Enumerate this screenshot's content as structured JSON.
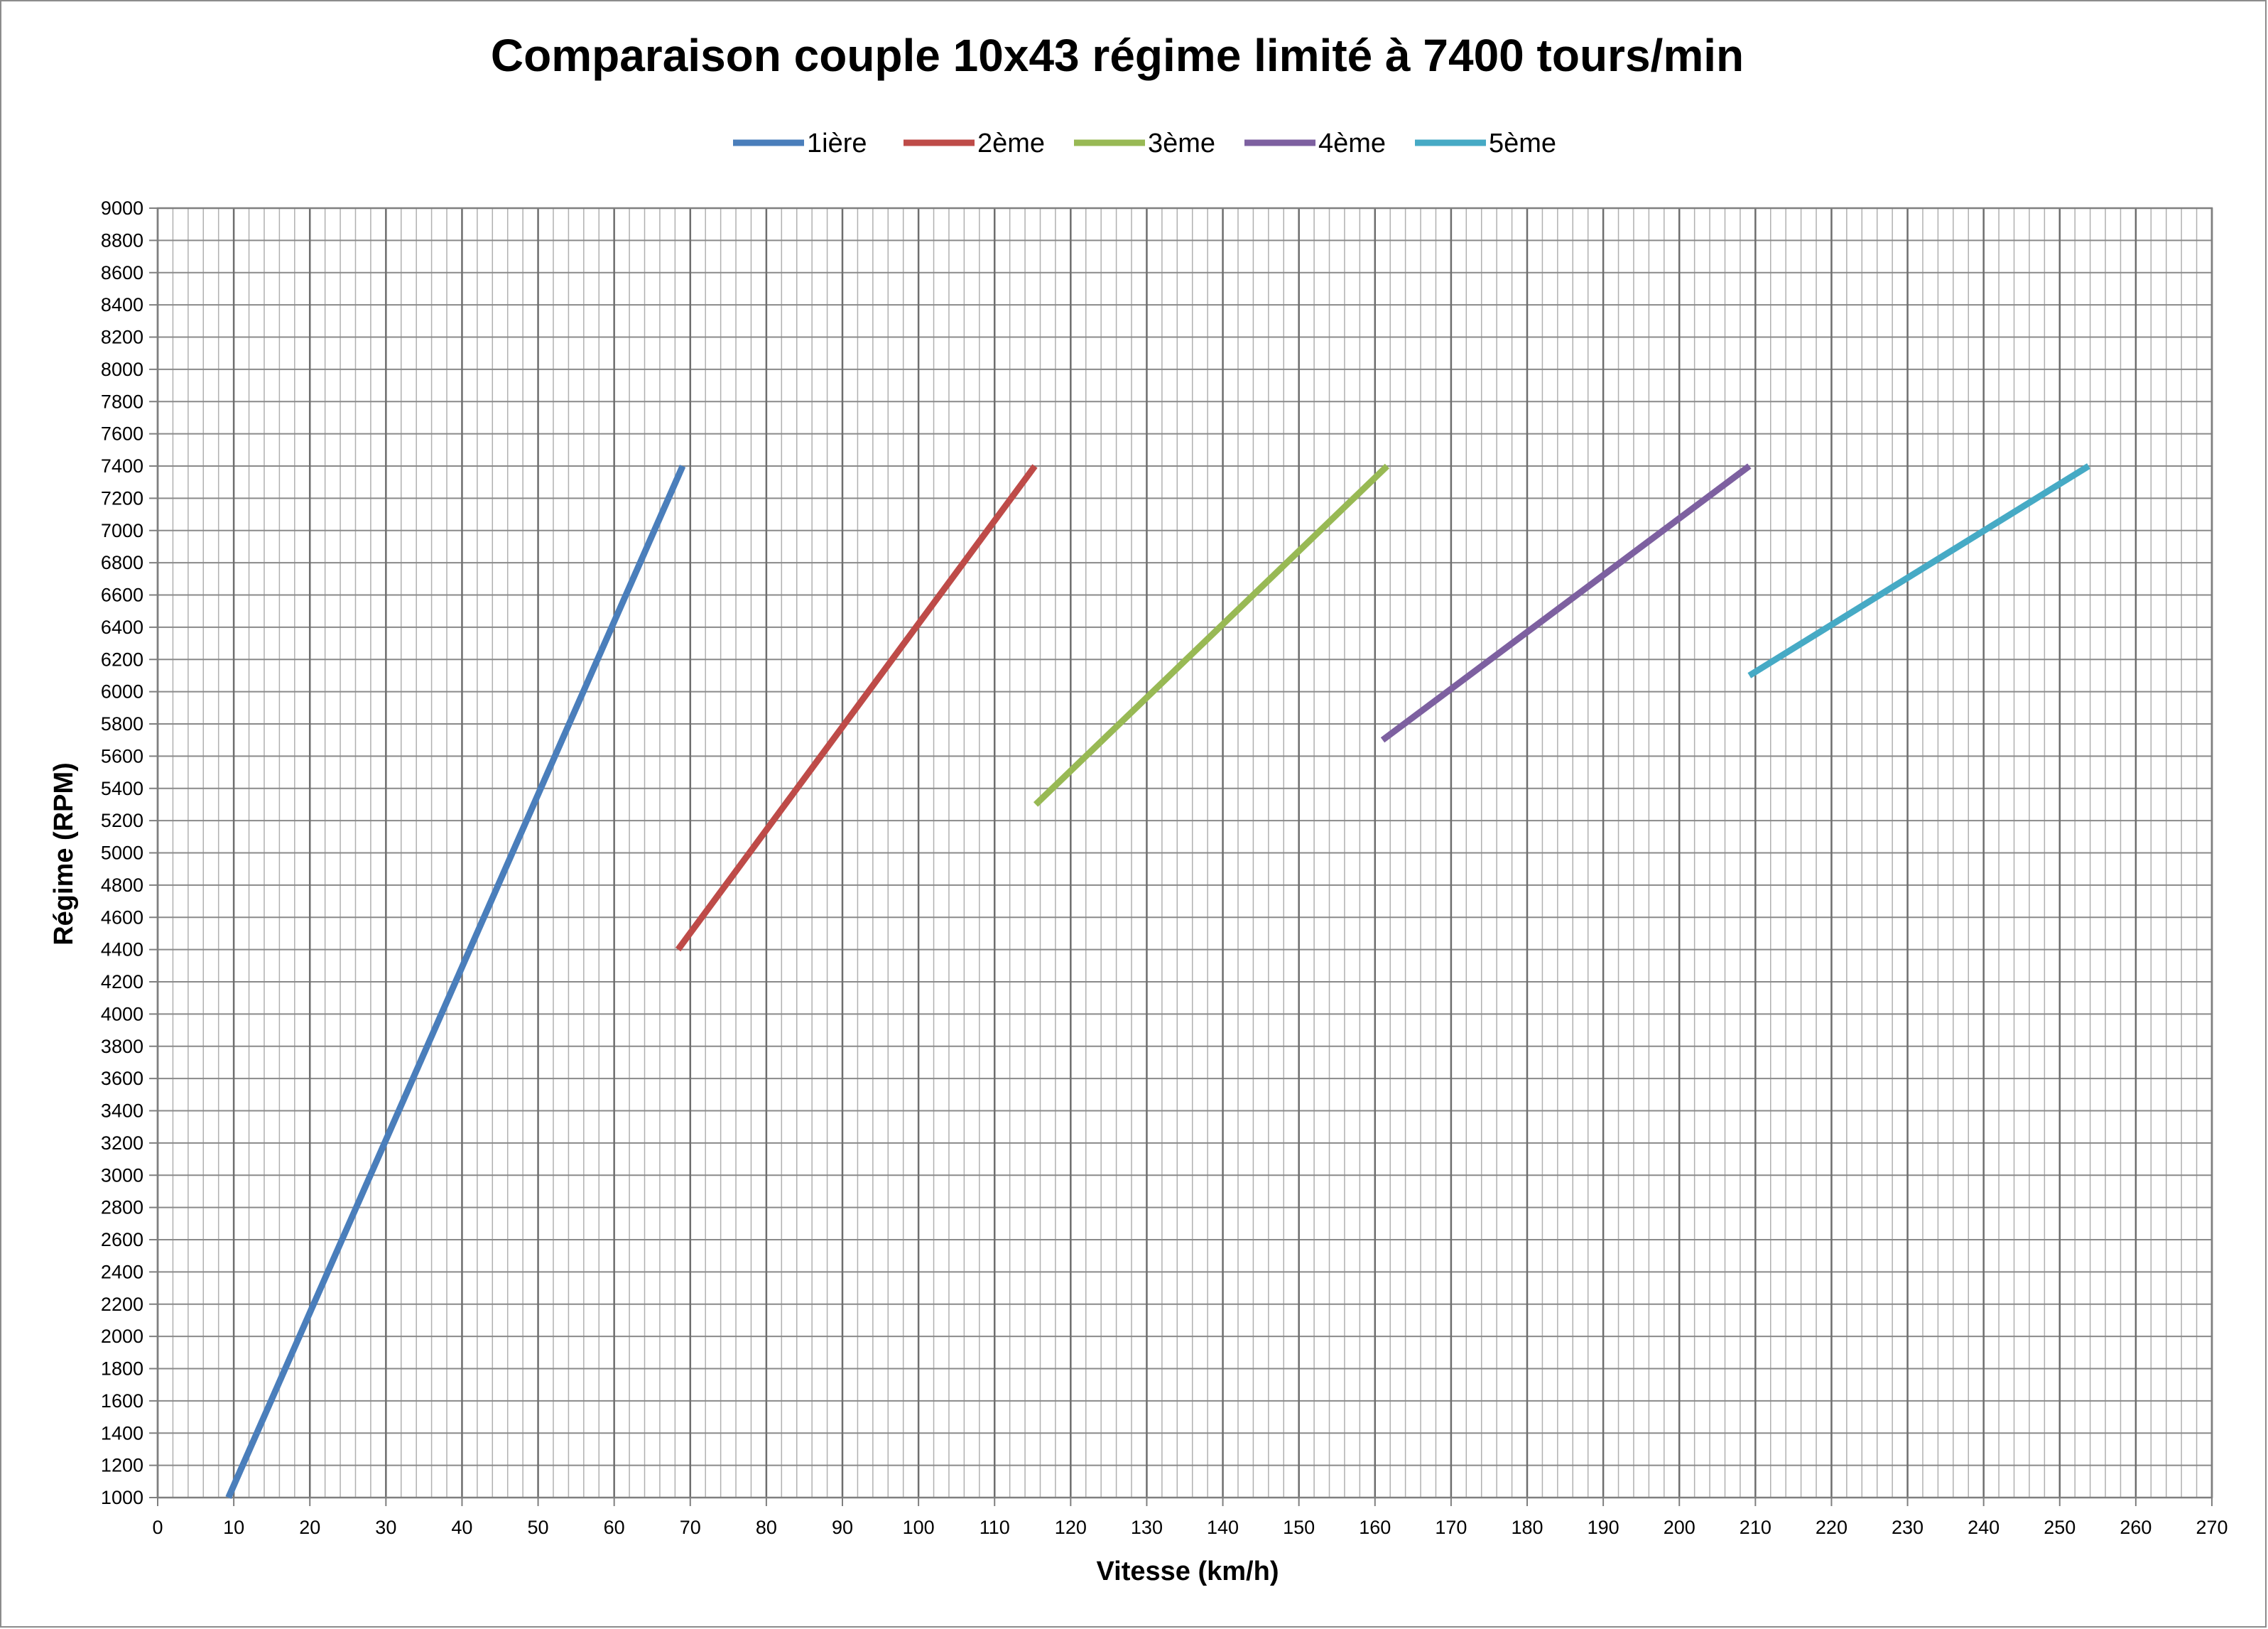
{
  "chart_data": {
    "type": "line",
    "title": "Comparaison couple 10x43 régime limité à 7400 tours/min",
    "xlabel": "Vitesse (km/h)",
    "ylabel": "Régime (RPM)",
    "xlim": [
      0,
      270
    ],
    "ylim": [
      1000,
      9000
    ],
    "x_major_step": 10,
    "x_minor_step": 2,
    "y_step": 200,
    "grid": true,
    "legend": "top",
    "series": [
      {
        "name": "1ière",
        "color": "#4a7ebb",
        "points": [
          [
            9.3,
            1000
          ],
          [
            69.0,
            7400
          ]
        ]
      },
      {
        "name": "2ème",
        "color": "#be4b48",
        "points": [
          [
            68.4,
            4400
          ],
          [
            115.3,
            7400
          ]
        ]
      },
      {
        "name": "3ème",
        "color": "#98b954",
        "points": [
          [
            115.4,
            5300
          ],
          [
            161.6,
            7400
          ]
        ]
      },
      {
        "name": "4ème",
        "color": "#7d60a0",
        "points": [
          [
            161.0,
            5700
          ],
          [
            209.2,
            7400
          ]
        ]
      },
      {
        "name": "5ème",
        "color": "#46aac5",
        "points": [
          [
            209.2,
            6100
          ],
          [
            253.8,
            7400
          ]
        ]
      }
    ]
  }
}
